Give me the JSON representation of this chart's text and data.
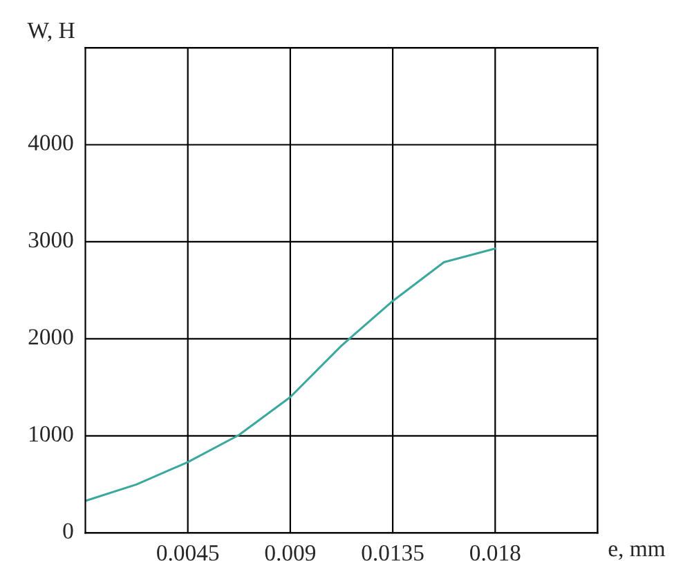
{
  "chart_data": {
    "type": "line",
    "xlabel": "e, mm",
    "ylabel": "W, H",
    "x": [
      0,
      0.00225,
      0.0045,
      0.00675,
      0.009,
      0.01125,
      0.0135,
      0.01575,
      0.018
    ],
    "series": [
      {
        "color": "#3aa89c",
        "values": [
          330,
          500,
          730,
          1010,
          1400,
          1930,
          2390,
          2790,
          2930
        ]
      }
    ],
    "xlim": [
      0,
      0.0225
    ],
    "ylim": [
      0,
      5000
    ],
    "xticks": [
      0.0045,
      0.009,
      0.0135,
      0.018,
      {
        "value": 0.0225,
        "label": null
      }
    ],
    "yticks": [
      0,
      1000,
      2000,
      3000,
      4000,
      {
        "value": 5000,
        "label": null
      }
    ],
    "grid": true,
    "marker": "none",
    "line_style": "solid",
    "legend": false
  }
}
